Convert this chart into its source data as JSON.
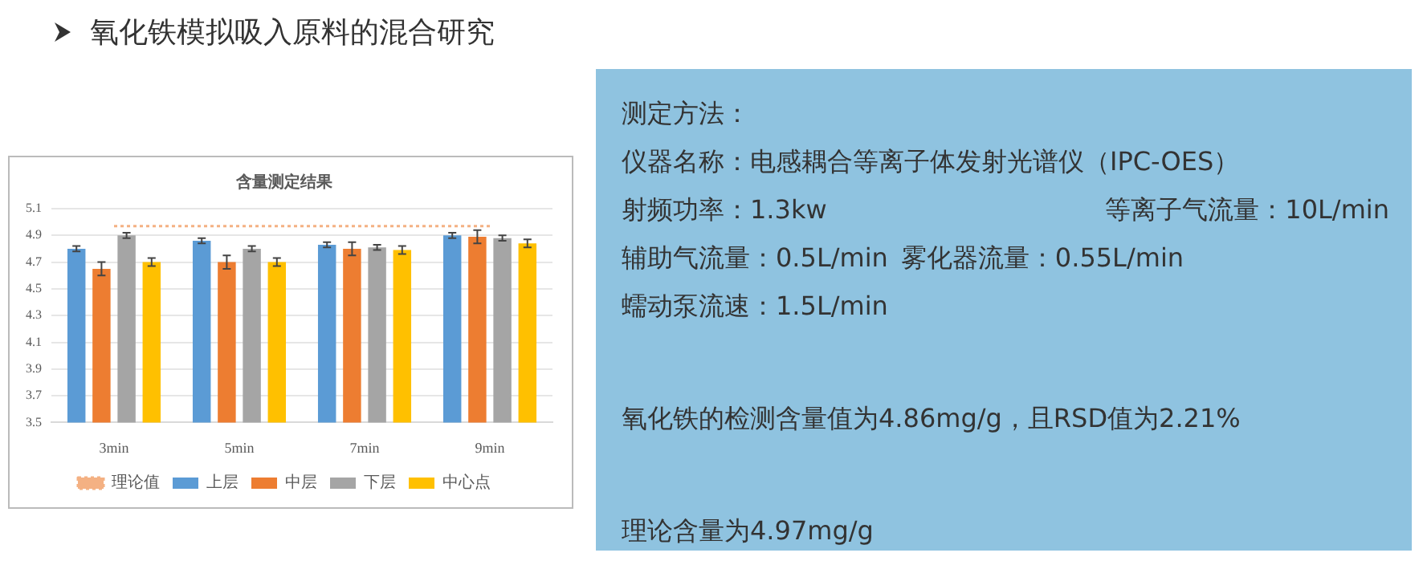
{
  "chart_data": [
    {
      "type": "bar",
      "title": "含量测定结果",
      "categories": [
        "3min",
        "5min",
        "7min",
        "9min"
      ],
      "series": [
        {
          "name": "上层",
          "color": "#5b9bd5",
          "values": [
            4.8,
            4.86,
            4.83,
            4.9
          ],
          "errors": [
            0.02,
            0.02,
            0.02,
            0.02
          ]
        },
        {
          "name": "中层",
          "color": "#ed7d31",
          "values": [
            4.65,
            4.7,
            4.8,
            4.89
          ],
          "errors": [
            0.05,
            0.05,
            0.05,
            0.05
          ]
        },
        {
          "name": "下层",
          "color": "#a5a5a5",
          "values": [
            4.9,
            4.8,
            4.81,
            4.88
          ],
          "errors": [
            0.02,
            0.02,
            0.02,
            0.02
          ]
        },
        {
          "name": "中心点",
          "color": "#ffc000",
          "values": [
            4.7,
            4.7,
            4.79,
            4.84
          ],
          "errors": [
            0.03,
            0.03,
            0.03,
            0.03
          ]
        },
        {
          "name": "理论值",
          "type": "line",
          "line_style": "dotted",
          "color": "#f4b183",
          "values": [
            4.97,
            4.97,
            4.97,
            4.97
          ]
        }
      ],
      "ylim": [
        3.5,
        5.1
      ],
      "yticks": [
        3.5,
        3.7,
        3.9,
        4.1,
        4.3,
        4.5,
        4.7,
        4.9,
        5.1
      ],
      "grid": "y",
      "legend": "bottom"
    },
    {
      "type": "other",
      "title": "氧化铁模拟吸入原料的混合研究",
      "annotations": [
        "测定方法：",
        "仪器名称：电感耦合等离子体发射光谱仪（IPC-OES）",
        "射频功率：1.3kw",
        "等离子气流量：10L/min",
        "辅助气流量：0.5L/min",
        "雾化器流量：0.55L/min",
        "蠕动泵流速：1.5L/min",
        "氧化铁的检测含量值为4.86mg/g，且RSD值为2.21%",
        "理论含量为4.97mg/g"
      ]
    }
  ]
}
